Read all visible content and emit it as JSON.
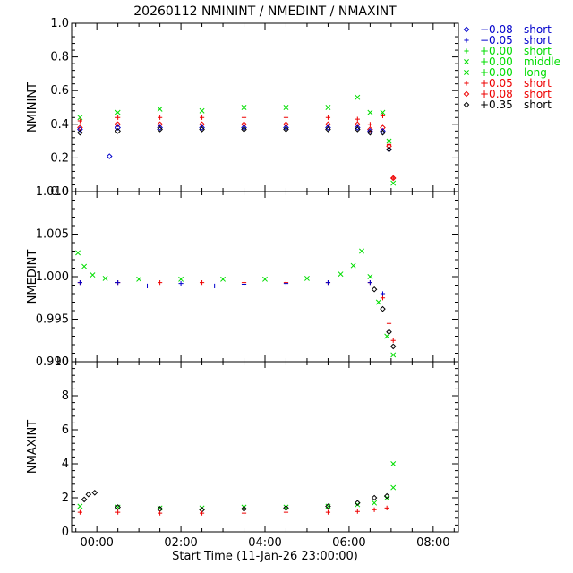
{
  "chart_data": {
    "type": "scatter",
    "title": "20260112 NMININT / NMEDINT / NMAXINT",
    "xlabel": "Start Time (11-Jan-26 23:00:00)",
    "xlim": [
      -0.6,
      8.6
    ],
    "xticks": [
      0,
      2,
      4,
      6,
      8
    ],
    "xtick_labels": [
      "00:00",
      "02:00",
      "04:00",
      "06:00",
      "08:00"
    ],
    "legend": [
      {
        "offset": "−0.08",
        "label": "short",
        "marker": "diamond",
        "color": "#0000cc"
      },
      {
        "offset": "−0.05",
        "label": "short",
        "marker": "plus",
        "color": "#0000cc"
      },
      {
        "offset": "+0.00",
        "label": "short",
        "marker": "plus",
        "color": "#00dd00"
      },
      {
        "offset": "+0.00",
        "label": "middle",
        "marker": "x",
        "color": "#00dd00"
      },
      {
        "offset": "+0.00",
        "label": "long",
        "marker": "x",
        "color": "#00dd00"
      },
      {
        "offset": "+0.05",
        "label": "short",
        "marker": "plus",
        "color": "#ee0000"
      },
      {
        "offset": "+0.08",
        "label": "short",
        "marker": "diamond",
        "color": "#ee0000"
      },
      {
        "offset": "+0.35",
        "label": "short",
        "marker": "diamond",
        "color": "#000000"
      }
    ],
    "panels": [
      {
        "ylabel": "NMININT",
        "ylim": [
          0.0,
          1.0
        ],
        "yticks": [
          0.0,
          0.2,
          0.4,
          0.6,
          0.8,
          1.0
        ],
        "ytick_labels": [
          "0.0",
          "0.2",
          "0.4",
          "0.6",
          "0.8",
          "1.0"
        ],
        "series": [
          {
            "name": "+0.00 long",
            "marker": "x",
            "color": "#00dd00",
            "x": [
              -0.4,
              0.5,
              1.5,
              2.5,
              3.5,
              4.5,
              5.5,
              6.2,
              6.5,
              6.8,
              6.95,
              7.05
            ],
            "y": [
              0.44,
              0.47,
              0.49,
              0.48,
              0.5,
              0.5,
              0.5,
              0.56,
              0.47,
              0.47,
              0.3,
              0.05
            ]
          },
          {
            "name": "+0.05 short",
            "marker": "plus",
            "color": "#ee0000",
            "x": [
              -0.4,
              0.5,
              1.5,
              2.5,
              3.5,
              4.5,
              5.5,
              6.2,
              6.5,
              6.8,
              6.95,
              7.05
            ],
            "y": [
              0.42,
              0.44,
              0.44,
              0.44,
              0.44,
              0.44,
              0.44,
              0.43,
              0.4,
              0.45,
              0.28,
              0.08
            ]
          },
          {
            "name": "+0.08 short",
            "marker": "diamond",
            "color": "#ee0000",
            "x": [
              -0.4,
              0.5,
              1.5,
              2.5,
              3.5,
              4.5,
              5.5,
              6.2,
              6.5,
              6.8,
              6.95,
              7.05
            ],
            "y": [
              0.38,
              0.4,
              0.4,
              0.4,
              0.4,
              0.4,
              0.4,
              0.4,
              0.37,
              0.38,
              0.27,
              0.08
            ]
          },
          {
            "name": "-0.08 short",
            "marker": "diamond",
            "color": "#0000cc",
            "x": [
              -0.4,
              0.3,
              0.5,
              1.5,
              2.5,
              3.5,
              4.5,
              5.5,
              6.2,
              6.5,
              6.8,
              6.95
            ],
            "y": [
              0.37,
              0.21,
              0.38,
              0.38,
              0.38,
              0.38,
              0.38,
              0.38,
              0.38,
              0.36,
              0.36,
              0.25
            ]
          },
          {
            "name": "+0.35 short",
            "marker": "diamond",
            "color": "#000000",
            "x": [
              -0.4,
              0.5,
              1.5,
              2.5,
              3.5,
              4.5,
              5.5,
              6.2,
              6.5,
              6.8,
              6.95
            ],
            "y": [
              0.35,
              0.36,
              0.37,
              0.37,
              0.37,
              0.37,
              0.37,
              0.37,
              0.35,
              0.35,
              0.25
            ]
          }
        ]
      },
      {
        "ylabel": "NMEDINT",
        "ylim": [
          0.99,
          1.01
        ],
        "yticks": [
          0.99,
          0.995,
          1.0,
          1.005,
          1.01
        ],
        "ytick_labels": [
          "0.990",
          "0.995",
          "1.000",
          "1.005",
          "1.010"
        ],
        "series": [
          {
            "name": "+0.00 long",
            "marker": "x",
            "color": "#00dd00",
            "x": [
              -0.45,
              -0.3,
              -0.1,
              0.2,
              1.0,
              2.0,
              3.0,
              4.0,
              5.0,
              5.8,
              6.1,
              6.3,
              6.5,
              6.7,
              6.9,
              7.05
            ],
            "y": [
              1.0028,
              1.0012,
              1.0002,
              0.9998,
              0.9997,
              0.9997,
              0.9997,
              0.9997,
              0.9998,
              1.0003,
              1.0013,
              1.003,
              1.0,
              0.997,
              0.993,
              0.9908
            ]
          },
          {
            "name": "+0.05 short",
            "marker": "plus",
            "color": "#ee0000",
            "x": [
              -0.4,
              0.5,
              1.5,
              2.5,
              3.5,
              4.5,
              5.5,
              6.5,
              6.8,
              6.95,
              7.05
            ],
            "y": [
              0.9993,
              0.9993,
              0.9993,
              0.9993,
              0.9993,
              0.9993,
              0.9993,
              0.9993,
              0.9975,
              0.9945,
              0.9925
            ]
          },
          {
            "name": "-0.05 short",
            "marker": "plus",
            "color": "#0000cc",
            "x": [
              -0.4,
              0.5,
              1.2,
              2.0,
              2.8,
              3.5,
              4.5,
              5.5,
              6.5,
              6.8
            ],
            "y": [
              0.9993,
              0.9993,
              0.9989,
              0.9992,
              0.9989,
              0.9991,
              0.9992,
              0.9993,
              0.9993,
              0.998
            ]
          },
          {
            "name": "+0.35 short",
            "marker": "diamond",
            "color": "#000000",
            "x": [
              6.6,
              6.8,
              6.95,
              7.05
            ],
            "y": [
              0.9985,
              0.9962,
              0.9935,
              0.9918
            ]
          }
        ]
      },
      {
        "ylabel": "NMAXINT",
        "ylim": [
          0,
          10
        ],
        "yticks": [
          0,
          2,
          4,
          6,
          8,
          10
        ],
        "ytick_labels": [
          "0",
          "2",
          "4",
          "6",
          "8",
          "10"
        ],
        "series": [
          {
            "name": "+0.00 long",
            "marker": "x",
            "color": "#00dd00",
            "x": [
              -0.4,
              0.5,
              1.5,
              2.5,
              3.5,
              4.5,
              5.5,
              6.2,
              6.6,
              6.9,
              7.05,
              7.05
            ],
            "y": [
              1.5,
              1.45,
              1.4,
              1.4,
              1.45,
              1.45,
              1.5,
              1.6,
              1.7,
              2.0,
              2.6,
              4.0
            ]
          },
          {
            "name": "+0.35 short",
            "marker": "diamond",
            "color": "#000000",
            "x": [
              -0.3,
              -0.2,
              -0.05,
              0.5,
              1.5,
              2.5,
              3.5,
              4.5,
              5.5,
              6.2,
              6.6,
              6.9
            ],
            "y": [
              1.9,
              2.2,
              2.3,
              1.45,
              1.35,
              1.3,
              1.35,
              1.4,
              1.5,
              1.7,
              2.0,
              2.1
            ]
          },
          {
            "name": "+0.05 short",
            "marker": "plus",
            "color": "#ee0000",
            "x": [
              -0.4,
              0.5,
              1.5,
              2.5,
              3.5,
              4.5,
              5.5,
              6.2,
              6.6,
              6.9
            ],
            "y": [
              1.15,
              1.15,
              1.1,
              1.1,
              1.1,
              1.15,
              1.15,
              1.2,
              1.3,
              1.4
            ]
          }
        ]
      }
    ]
  }
}
